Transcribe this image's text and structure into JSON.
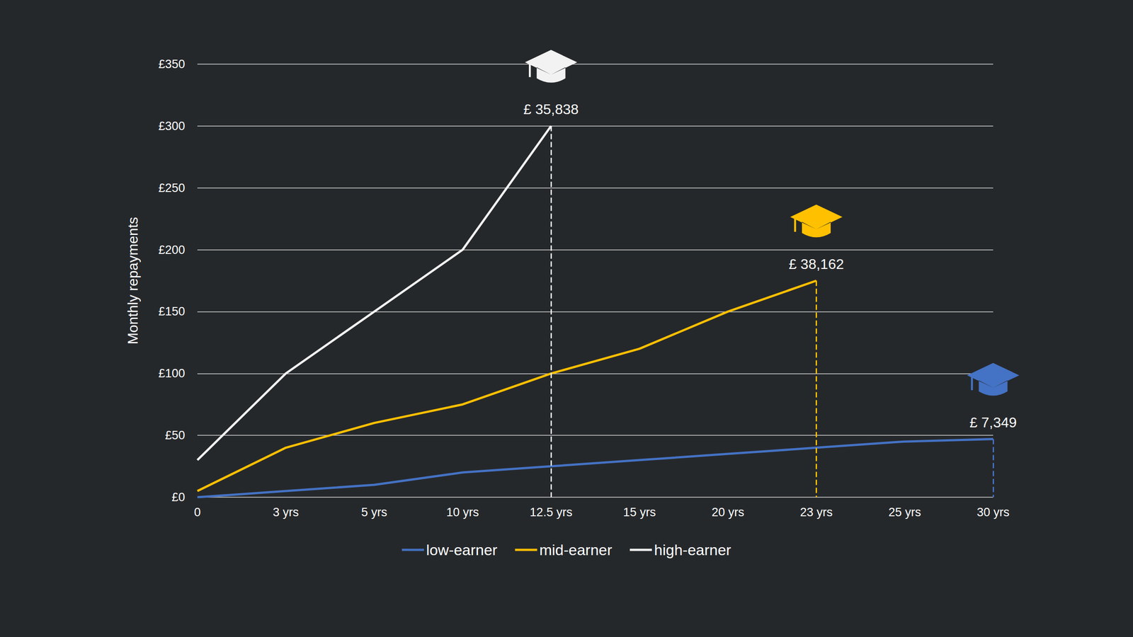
{
  "chart_data": {
    "type": "line",
    "y_label": "Monthly repayments",
    "categories": [
      "0",
      "3 yrs",
      "5 yrs",
      "10 yrs",
      "12.5 yrs",
      "15 yrs",
      "20 yrs",
      "23 yrs",
      "25 yrs",
      "30 yrs"
    ],
    "series": [
      {
        "name": "low-earner",
        "color": "#4472c4",
        "values": [
          0,
          5,
          10,
          20,
          25,
          30,
          35,
          40,
          45,
          47
        ],
        "end_label": "£ 7,349"
      },
      {
        "name": "mid-earner",
        "color": "#ffc000",
        "values": [
          5,
          40,
          60,
          75,
          100,
          120,
          150,
          175,
          null,
          null
        ],
        "end_label": "£ 38,162"
      },
      {
        "name": "high-earner",
        "color": "#f2f2f2",
        "values": [
          30,
          100,
          150,
          200,
          300,
          null,
          null,
          null,
          null,
          null
        ],
        "end_label": "£ 35,838"
      }
    ],
    "ylim": [
      0,
      350
    ],
    "yticks": [
      {
        "value": 0,
        "label": "£0"
      },
      {
        "value": 50,
        "label": "£50"
      },
      {
        "value": 100,
        "label": "£100"
      },
      {
        "value": 150,
        "label": "£150"
      },
      {
        "value": 200,
        "label": "£200"
      },
      {
        "value": 250,
        "label": "£250"
      },
      {
        "value": 300,
        "label": "£300"
      },
      {
        "value": 350,
        "label": "£350"
      }
    ],
    "grid": true,
    "legend": "bottom"
  }
}
